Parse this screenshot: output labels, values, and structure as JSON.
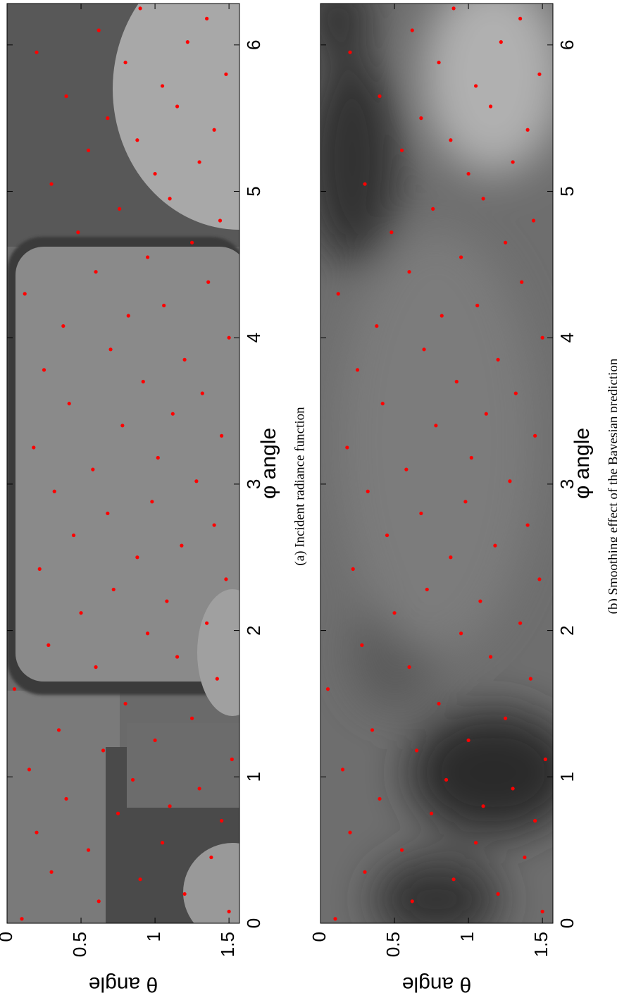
{
  "chart_data": [
    {
      "type": "scatter",
      "caption": "(a) Incident radiance function",
      "xlabel": "φ angle",
      "ylabel": "θ angle",
      "xlim": [
        0,
        6.283
      ],
      "ylim": [
        0,
        1.5708
      ],
      "xticks": [
        0,
        1,
        2,
        3,
        4,
        5,
        6
      ],
      "yticks": [
        0,
        0.5,
        1,
        1.5
      ],
      "color": "#ff0000",
      "x": [
        0.03,
        0.08,
        0.15,
        0.2,
        0.3,
        0.35,
        0.45,
        0.5,
        0.55,
        0.62,
        0.7,
        0.75,
        0.8,
        0.85,
        0.92,
        0.98,
        1.05,
        1.12,
        1.18,
        1.25,
        1.32,
        1.4,
        1.5,
        1.6,
        1.67,
        1.75,
        1.82,
        1.9,
        1.98,
        2.05,
        2.12,
        2.2,
        2.28,
        2.35,
        2.42,
        2.5,
        2.58,
        2.65,
        2.72,
        2.8,
        2.88,
        2.95,
        3.02,
        3.1,
        3.18,
        3.25,
        3.33,
        3.4,
        3.48,
        3.55,
        3.62,
        3.7,
        3.78,
        3.85,
        3.92,
        4.0,
        4.08,
        4.15,
        4.22,
        4.3,
        4.38,
        4.45,
        4.55,
        4.65,
        4.72,
        4.8,
        4.88,
        4.95,
        5.05,
        5.12,
        5.2,
        5.28,
        5.35,
        5.42,
        5.5,
        5.58,
        5.65,
        5.72,
        5.8,
        5.88,
        5.95,
        6.02,
        6.1,
        6.18,
        6.25
      ],
      "y": [
        0.1,
        1.5,
        0.62,
        1.2,
        0.9,
        0.3,
        1.38,
        0.55,
        1.05,
        0.2,
        1.45,
        0.75,
        1.1,
        0.4,
        1.3,
        0.85,
        0.15,
        1.52,
        0.65,
        1.0,
        0.35,
        1.25,
        0.8,
        0.05,
        1.42,
        0.6,
        1.15,
        0.28,
        0.95,
        1.35,
        0.5,
        1.08,
        0.72,
        1.48,
        0.22,
        0.88,
        1.18,
        0.45,
        1.4,
        0.68,
        0.98,
        0.32,
        1.28,
        0.58,
        1.02,
        0.18,
        1.45,
        0.78,
        1.12,
        0.42,
        1.32,
        0.92,
        0.25,
        1.2,
        0.7,
        1.5,
        0.38,
        0.82,
        1.06,
        0.12,
        1.36,
        0.6,
        0.95,
        1.25,
        0.48,
        1.44,
        0.76,
        1.1,
        0.3,
        1.0,
        1.3,
        0.55,
        0.88,
        1.4,
        0.68,
        1.15,
        0.4,
        1.05,
        1.48,
        0.8,
        0.2,
        1.22,
        0.62,
        1.35,
        0.9
      ]
    },
    {
      "type": "scatter",
      "caption": "(b) Smoothing effect of the Bayesian prediction",
      "xlabel": "φ angle",
      "ylabel": "θ angle",
      "xlim": [
        0,
        6.283
      ],
      "ylim": [
        0,
        1.5708
      ],
      "xticks": [
        0,
        1,
        2,
        3,
        4,
        5,
        6
      ],
      "yticks": [
        0,
        0.5,
        1,
        1.5
      ],
      "color": "#ff0000",
      "x": [
        0.03,
        0.08,
        0.15,
        0.2,
        0.3,
        0.35,
        0.45,
        0.5,
        0.55,
        0.62,
        0.7,
        0.75,
        0.8,
        0.85,
        0.92,
        0.98,
        1.05,
        1.12,
        1.18,
        1.25,
        1.32,
        1.4,
        1.5,
        1.6,
        1.67,
        1.75,
        1.82,
        1.9,
        1.98,
        2.05,
        2.12,
        2.2,
        2.28,
        2.35,
        2.42,
        2.5,
        2.58,
        2.65,
        2.72,
        2.8,
        2.88,
        2.95,
        3.02,
        3.1,
        3.18,
        3.25,
        3.33,
        3.4,
        3.48,
        3.55,
        3.62,
        3.7,
        3.78,
        3.85,
        3.92,
        4.0,
        4.08,
        4.15,
        4.22,
        4.3,
        4.38,
        4.45,
        4.55,
        4.65,
        4.72,
        4.8,
        4.88,
        4.95,
        5.05,
        5.12,
        5.2,
        5.28,
        5.35,
        5.42,
        5.5,
        5.58,
        5.65,
        5.72,
        5.8,
        5.88,
        5.95,
        6.02,
        6.1,
        6.18,
        6.25
      ],
      "y": [
        0.1,
        1.5,
        0.62,
        1.2,
        0.9,
        0.3,
        1.38,
        0.55,
        1.05,
        0.2,
        1.45,
        0.75,
        1.1,
        0.4,
        1.3,
        0.85,
        0.15,
        1.52,
        0.65,
        1.0,
        0.35,
        1.25,
        0.8,
        0.05,
        1.42,
        0.6,
        1.15,
        0.28,
        0.95,
        1.35,
        0.5,
        1.08,
        0.72,
        1.48,
        0.22,
        0.88,
        1.18,
        0.45,
        1.4,
        0.68,
        0.98,
        0.32,
        1.28,
        0.58,
        1.02,
        0.18,
        1.45,
        0.78,
        1.12,
        0.42,
        1.32,
        0.92,
        0.25,
        1.2,
        0.7,
        1.5,
        0.38,
        0.82,
        1.06,
        0.12,
        1.36,
        0.6,
        0.95,
        1.25,
        0.48,
        1.44,
        0.76,
        1.1,
        0.3,
        1.0,
        1.3,
        0.55,
        0.88,
        1.4,
        0.68,
        1.15,
        0.4,
        1.05,
        1.48,
        0.8,
        0.2,
        1.22,
        0.62,
        1.35,
        0.9
      ]
    }
  ]
}
